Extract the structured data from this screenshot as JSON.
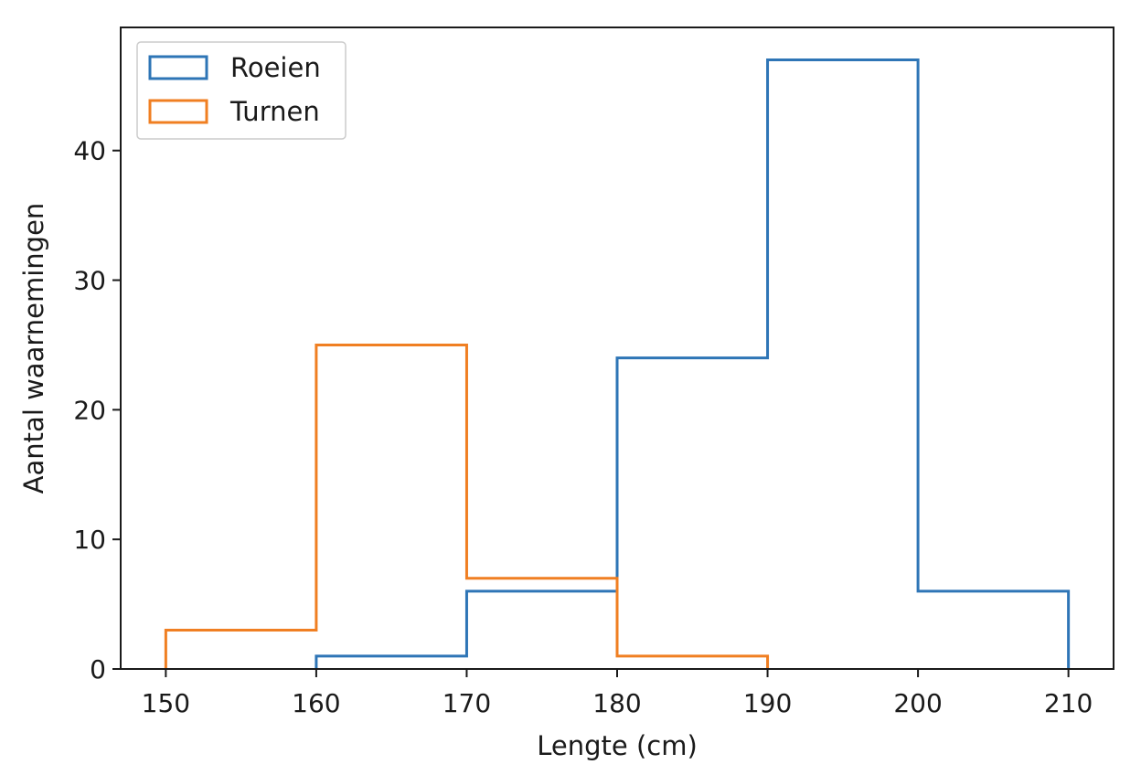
{
  "chart_data": {
    "type": "histogram-step",
    "xlabel": "Lengte (cm)",
    "ylabel": "Aantal waarnemingen",
    "xlim": [
      147,
      213
    ],
    "ylim": [
      0,
      49.5
    ],
    "xticks": [
      150,
      160,
      170,
      180,
      190,
      200,
      210
    ],
    "yticks": [
      0,
      10,
      20,
      30,
      40
    ],
    "grid": false,
    "legend_position": "upper-left",
    "series": [
      {
        "name": "Roeien",
        "color": "#2e75b6",
        "bin_edges": [
          160,
          170,
          180,
          190,
          200,
          210
        ],
        "counts": [
          1,
          6,
          24,
          47,
          6
        ]
      },
      {
        "name": "Turnen",
        "color": "#f07f22",
        "bin_edges": [
          150,
          160,
          170,
          180,
          190
        ],
        "counts": [
          3,
          25,
          7,
          1
        ]
      }
    ]
  }
}
